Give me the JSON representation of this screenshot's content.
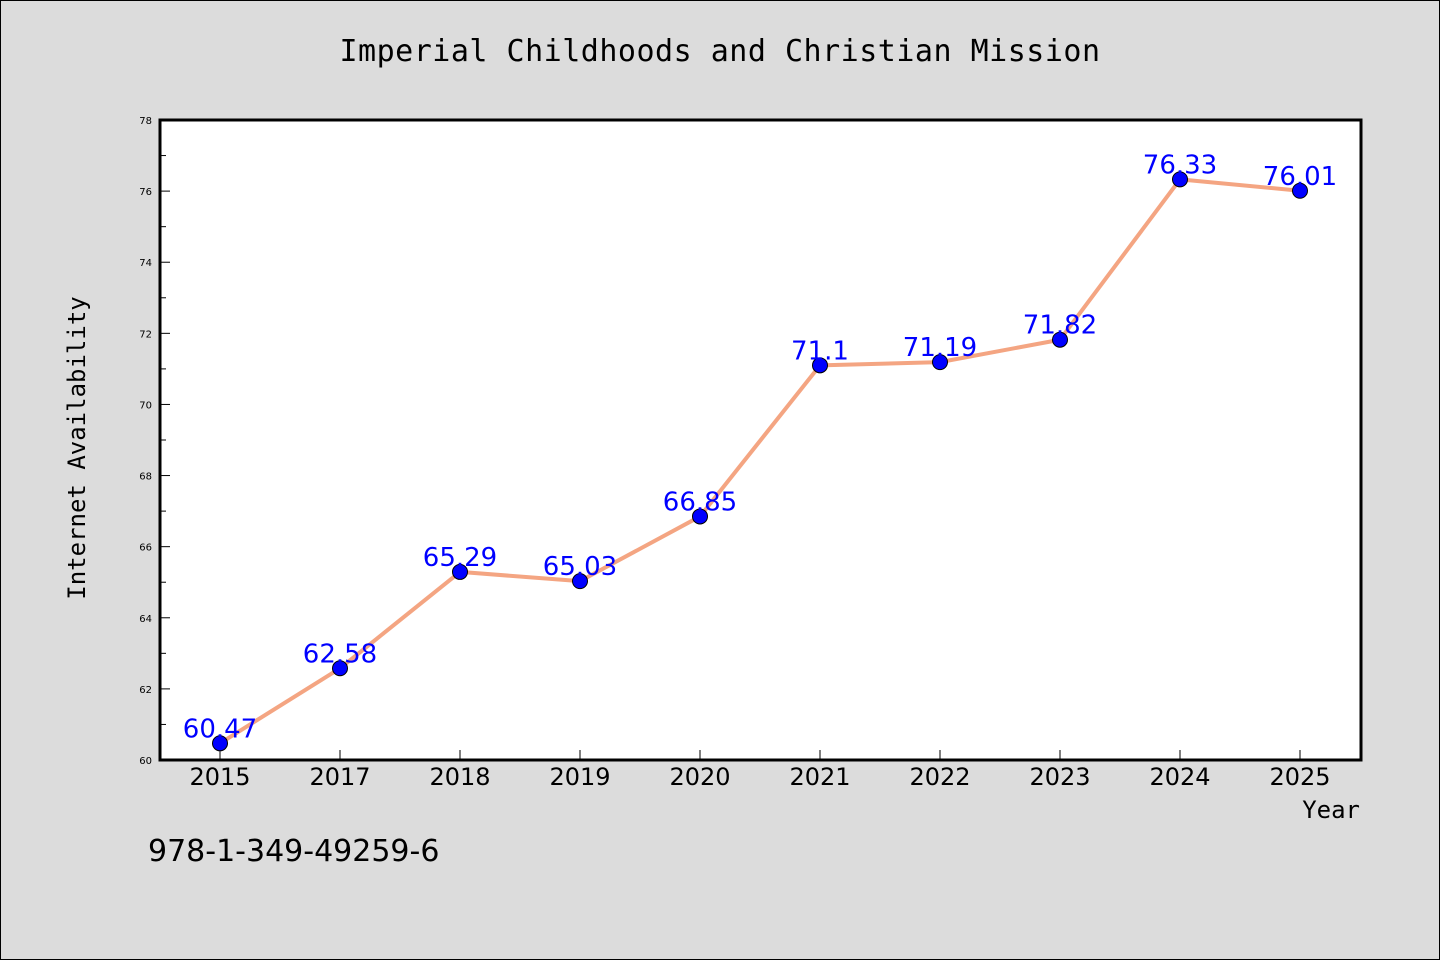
{
  "chart_data": {
    "type": "line",
    "title": "Imperial Childhoods and Christian Mission",
    "xlabel": "Year",
    "ylabel": "Internet Availability",
    "categories": [
      "2015",
      "2017",
      "2018",
      "2019",
      "2020",
      "2021",
      "2022",
      "2023",
      "2024",
      "2025"
    ],
    "series": [
      {
        "values": [
          60.47,
          62.58,
          65.29,
          65.03,
          66.85,
          71.1,
          71.19,
          71.82,
          76.33,
          76.01
        ],
        "line_color": "#f4a582",
        "marker_color": "#0000ff"
      }
    ],
    "data_labels": [
      "60.47",
      "62.58",
      "65.29",
      "65.03",
      "66.85",
      "71.1",
      "71.19",
      "71.82",
      "76.33",
      "76.01"
    ],
    "ylim": [
      60,
      78
    ],
    "yticks": [
      "60",
      "62",
      "64",
      "66",
      "68",
      "70",
      "72",
      "74",
      "76",
      "78"
    ],
    "grid": false,
    "legend": "none"
  },
  "footer": {
    "isbn": "978-1-349-49259-6"
  },
  "colors": {
    "background": "#dcdcdc",
    "plot_background": "#ffffff",
    "label_color": "#0000ff"
  }
}
